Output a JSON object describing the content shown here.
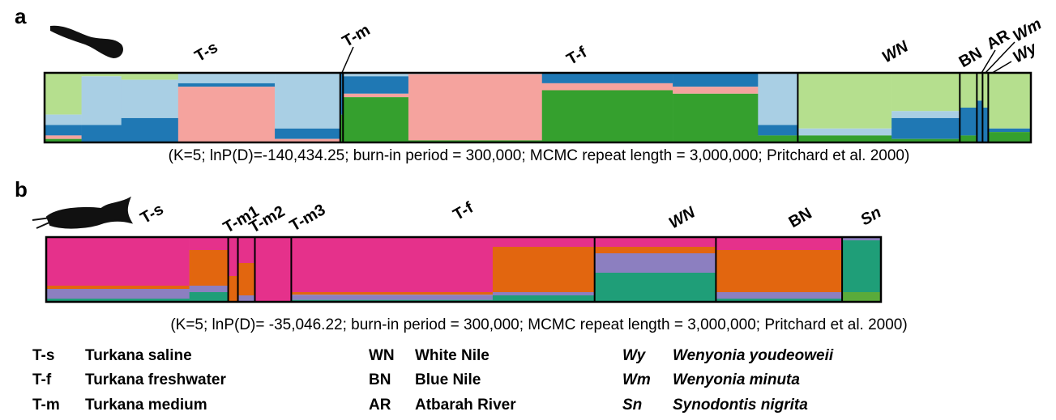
{
  "panels": [
    {
      "letter": "a",
      "caption": "(K=5; lnP(D)=-140,434.25; burn-in period = 300,000; MCMC repeat length = 3,000,000; Pritchard et al. 2000)",
      "cluster_colors": [
        "#b5df8e",
        "#a9cfe4",
        "#1f78b4",
        "#f5a39e",
        "#35a02e"
      ],
      "populations": [
        {
          "label": "T-s",
          "segments": [
            {
              "n": 13,
              "proportions": [
                60,
                15,
                15,
                5,
                5
              ]
            },
            {
              "n": 14,
              "proportions": [
                5,
                70,
                25,
                0,
                0
              ]
            },
            {
              "n": 20,
              "proportions": [
                10,
                55,
                35,
                0,
                0
              ]
            },
            {
              "n": 34,
              "proportions": [
                0,
                15,
                5,
                80,
                0
              ]
            },
            {
              "n": 23,
              "proportions": [
                0,
                80,
                15,
                5,
                0
              ]
            }
          ]
        },
        {
          "label": "T-m",
          "segments": [
            {
              "n": 1,
              "proportions": [
                0,
                0,
                60,
                0,
                40
              ]
            }
          ]
        },
        {
          "label": "T-f",
          "segments": [
            {
              "n": 23,
              "proportions": [
                0,
                5,
                25,
                5,
                65
              ]
            },
            {
              "n": 47,
              "proportions": [
                0,
                2,
                0,
                95,
                3
              ]
            },
            {
              "n": 46,
              "proportions": [
                0,
                0,
                15,
                10,
                75
              ]
            },
            {
              "n": 30,
              "proportions": [
                0,
                0,
                20,
                10,
                70
              ]
            },
            {
              "n": 14,
              "proportions": [
                0,
                75,
                15,
                0,
                10
              ]
            }
          ]
        },
        {
          "label": "WN",
          "segments": [
            {
              "n": 33,
              "proportions": [
                80,
                10,
                0,
                0,
                10
              ]
            },
            {
              "n": 24,
              "proportions": [
                55,
                10,
                30,
                0,
                5
              ]
            }
          ]
        },
        {
          "label": "BN",
          "segments": [
            {
              "n": 6,
              "proportions": [
                50,
                0,
                40,
                0,
                10
              ]
            }
          ]
        },
        {
          "label": "AR",
          "segments": [
            {
              "n": 2,
              "proportions": [
                40,
                0,
                60,
                0,
                0
              ]
            }
          ]
        },
        {
          "label": "Wm",
          "segments": [
            {
              "n": 2,
              "proportions": [
                50,
                0,
                50,
                0,
                0
              ]
            }
          ]
        },
        {
          "label": "Wy",
          "segments": [
            {
              "n": 15,
              "proportions": [
                80,
                0,
                5,
                0,
                15
              ]
            }
          ]
        }
      ]
    },
    {
      "letter": "b",
      "caption": "(K=5; lnP(D)= -35,046.22; burn-in period = 300,000; MCMC repeat length = 3,000,000; Pritchard et al. 2000)",
      "cluster_colors": [
        "#e5318b",
        "#e2660f",
        "#8c7fc0",
        "#1f9e78",
        "#5aab3a"
      ],
      "populations": [
        {
          "label": "T-s",
          "segments": [
            {
              "n": 59,
              "proportions": [
                75,
                5,
                15,
                5,
                0
              ]
            },
            {
              "n": 16,
              "proportions": [
                20,
                55,
                10,
                15,
                0
              ]
            }
          ]
        },
        {
          "label": "T-m1",
          "segments": [
            {
              "n": 4,
              "proportions": [
                60,
                40,
                0,
                0,
                0
              ]
            }
          ]
        },
        {
          "label": "T-m2",
          "segments": [
            {
              "n": 7,
              "proportions": [
                40,
                50,
                10,
                0,
                0
              ]
            }
          ]
        },
        {
          "label": "T-m3",
          "segments": [
            {
              "n": 15,
              "proportions": [
                100,
                0,
                0,
                0,
                0
              ]
            }
          ]
        },
        {
          "label": "T-f",
          "segments": [
            {
              "n": 83,
              "proportions": [
                85,
                4,
                8,
                3,
                0
              ]
            },
            {
              "n": 42,
              "proportions": [
                15,
                70,
                5,
                10,
                0
              ]
            }
          ]
        },
        {
          "label": "WN",
          "segments": [
            {
              "n": 50,
              "proportions": [
                15,
                10,
                30,
                45,
                0
              ]
            }
          ]
        },
        {
          "label": "BN",
          "segments": [
            {
              "n": 52,
              "proportions": [
                20,
                65,
                10,
                5,
                0
              ]
            }
          ]
        },
        {
          "label": "Sn",
          "segments": [
            {
              "n": 16,
              "proportions": [
                0,
                0,
                5,
                80,
                15
              ]
            }
          ]
        }
      ]
    }
  ],
  "legend": [
    [
      {
        "code": "T-s",
        "name": "Turkana saline"
      },
      {
        "code": "T-f",
        "name": "Turkana freshwater"
      },
      {
        "code": "T-m",
        "name": "Turkana medium"
      }
    ],
    [
      {
        "code": "WN",
        "name": "White Nile"
      },
      {
        "code": "BN",
        "name": "Blue Nile"
      },
      {
        "code": "AR",
        "name": "Atbarah River"
      }
    ],
    [
      {
        "code": "Wy",
        "name": "Wenyonia youdeoweii"
      },
      {
        "code": "Wm",
        "name": "Wenyonia minuta"
      },
      {
        "code": "Sn",
        "name": "Synodontis nigrita"
      }
    ]
  ]
}
